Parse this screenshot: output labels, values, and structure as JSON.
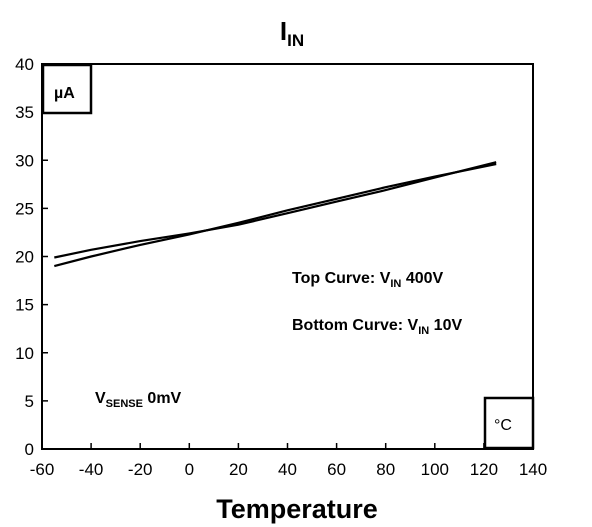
{
  "chart_data": {
    "type": "line",
    "title": {
      "main": "I",
      "sub": "IN"
    },
    "xlabel": "Temperature",
    "ylabel_unit": "µA",
    "xlabel_unit": "°C",
    "xlim": [
      -60,
      140
    ],
    "ylim": [
      0,
      40
    ],
    "xticks": [
      "-60",
      "-40",
      "-20",
      "0",
      "20",
      "40",
      "60",
      "80",
      "100",
      "120",
      "140"
    ],
    "yticks": [
      "0",
      "5",
      "10",
      "15",
      "20",
      "25",
      "30",
      "35",
      "40"
    ],
    "grid": false,
    "series": [
      {
        "x": [
          -55,
          -40,
          -20,
          0,
          20,
          40,
          60,
          80,
          100,
          125
        ],
        "y": [
          19.9,
          20.7,
          21.6,
          22.4,
          23.3,
          24.5,
          25.7,
          26.9,
          28.2,
          29.8
        ]
      },
      {
        "x": [
          -55,
          -40,
          -20,
          0,
          20,
          40,
          60,
          80,
          100,
          125
        ],
        "y": [
          19.0,
          20.0,
          21.2,
          22.3,
          23.5,
          24.8,
          26.0,
          27.2,
          28.3,
          29.6
        ]
      }
    ],
    "annotations": {
      "top_curve": {
        "prefix": "Top Curve:  V",
        "sub": "IN",
        "suffix": "  400V"
      },
      "bottom_curve": {
        "prefix": "Bottom Curve:  V",
        "sub": "IN",
        "suffix": "  10V"
      },
      "vsense": {
        "prefix": "V",
        "sub": "SENSE",
        "suffix": "  0mV"
      }
    }
  }
}
